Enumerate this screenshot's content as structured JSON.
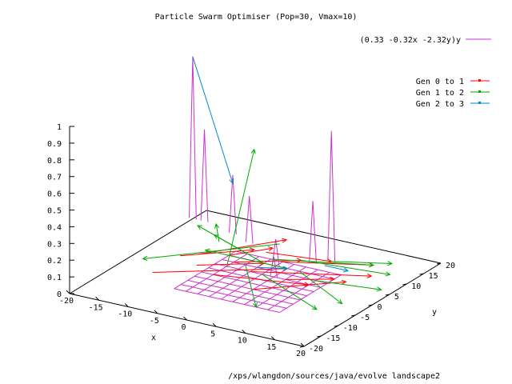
{
  "chart_data": {
    "type": "surface3d",
    "title": "Particle Swarm Optimiser (Pop=30, Vmax=10)",
    "xlabel": "x",
    "ylabel": "y",
    "xlim": [
      -20,
      20
    ],
    "ylim": [
      -20,
      20
    ],
    "zlim": [
      0,
      1
    ],
    "x_ticks": [
      "-20",
      "-15",
      "-10",
      "-5",
      "0",
      "5",
      "10",
      "15",
      "20"
    ],
    "y_ticks": [
      "-20",
      "-15",
      "-10",
      "-5",
      "0",
      "5",
      "10",
      "15",
      "20"
    ],
    "z_ticks": [
      "0",
      "0.1",
      "0.2",
      "0.3",
      "0.4",
      "0.5",
      "0.6",
      "0.7",
      "0.8",
      "0.9",
      "1"
    ],
    "surface": {
      "name": "(0.33 -0.32x -2.32y)y",
      "color": "#cc33cc",
      "grid_x": [
        -8,
        -6,
        -4,
        -2,
        0,
        2,
        4,
        6,
        8,
        10
      ],
      "grid_y": [
        -10,
        -8,
        -6,
        -4,
        -2,
        0,
        2,
        4,
        6,
        8
      ],
      "peaks": [
        {
          "x": -20,
          "y": 16,
          "z": 0.97
        },
        {
          "x": -18,
          "y": 16,
          "z": 0.55
        },
        {
          "x": -12,
          "y": 14,
          "z": 0.35
        },
        {
          "x": -8,
          "y": 12,
          "z": 0.28
        },
        {
          "x": 6,
          "y": 12,
          "z": 0.78
        },
        {
          "x": 4,
          "y": 10,
          "z": 0.37
        },
        {
          "x": 0,
          "y": 6,
          "z": 0.16
        },
        {
          "x": 2,
          "y": 2,
          "z": 0.12
        }
      ]
    },
    "series": [
      {
        "name": "Gen 0 to 1",
        "color": "#ff0000",
        "segments": [
          [
            [
              -12,
              4,
              0
            ],
            [
              -4,
              16,
              0
            ]
          ],
          [
            [
              -14,
              -6,
              0
            ],
            [
              2,
              6,
              0
            ]
          ],
          [
            [
              -6,
              -2,
              0
            ],
            [
              8,
              2,
              0
            ]
          ],
          [
            [
              -2,
              2,
              0
            ],
            [
              14,
              10,
              0
            ]
          ],
          [
            [
              0,
              8,
              0
            ],
            [
              12,
              14,
              0
            ]
          ],
          [
            [
              -8,
              6,
              0
            ],
            [
              -4,
              12,
              0
            ]
          ],
          [
            [
              -10,
              0,
              0
            ],
            [
              -2,
              6,
              0
            ]
          ],
          [
            [
              -4,
              10,
              0
            ],
            [
              6,
              12,
              0
            ]
          ],
          [
            [
              -14,
              2,
              0
            ],
            [
              -6,
              10,
              0
            ]
          ],
          [
            [
              2,
              -4,
              0
            ],
            [
              12,
              6,
              0
            ]
          ],
          [
            [
              4,
              2,
              0
            ],
            [
              10,
              6,
              0
            ]
          ],
          [
            [
              -6,
              4,
              0
            ],
            [
              2,
              10,
              0
            ]
          ]
        ]
      },
      {
        "name": "Gen 1 to 2",
        "color": "#00aa00",
        "segments": [
          [
            [
              -4,
              14,
              0
            ],
            [
              -18,
              -2,
              0
            ]
          ],
          [
            [
              2,
              6,
              0
            ],
            [
              -12,
              6,
              0
            ]
          ],
          [
            [
              6,
              12,
              0
            ],
            [
              14,
              16,
              0
            ]
          ],
          [
            [
              0,
              2,
              0
            ],
            [
              14,
              -6,
              0
            ]
          ],
          [
            [
              4,
              6,
              0
            ],
            [
              16,
              -2,
              0
            ]
          ],
          [
            [
              -2,
              8,
              0
            ],
            [
              12,
              14,
              0
            ]
          ],
          [
            [
              -12,
              10,
              0
            ],
            [
              -16,
              16,
              0
            ]
          ],
          [
            [
              -6,
              8,
              0
            ],
            [
              -18,
              14,
              0
            ]
          ],
          [
            [
              8,
              4,
              0
            ],
            [
              18,
              6,
              0
            ]
          ],
          [
            [
              -4,
              4,
              0
            ],
            [
              6,
              -10,
              0
            ]
          ],
          [
            [
              2,
              10,
              0
            ],
            [
              16,
              12,
              0
            ]
          ],
          [
            [
              -2,
              6,
              0
            ],
            [
              -14,
              12,
              0
            ]
          ],
          [
            [
              -6,
              2,
              0
            ],
            [
              -6,
              10,
              0.6
            ]
          ]
        ]
      },
      {
        "name": "Gen 2 to 3",
        "color": "#0088cc",
        "segments": [
          [
            [
              -20,
              16,
              0.97
            ],
            [
              -12,
              14,
              0.3
            ]
          ],
          [
            [
              6,
              10,
              0
            ],
            [
              10,
              10,
              0
            ]
          ],
          [
            [
              -2,
              4,
              0
            ],
            [
              2,
              6,
              0
            ]
          ]
        ]
      }
    ]
  },
  "footer_text": "/xps/wlangdon/sources/java/evolve landscape2"
}
